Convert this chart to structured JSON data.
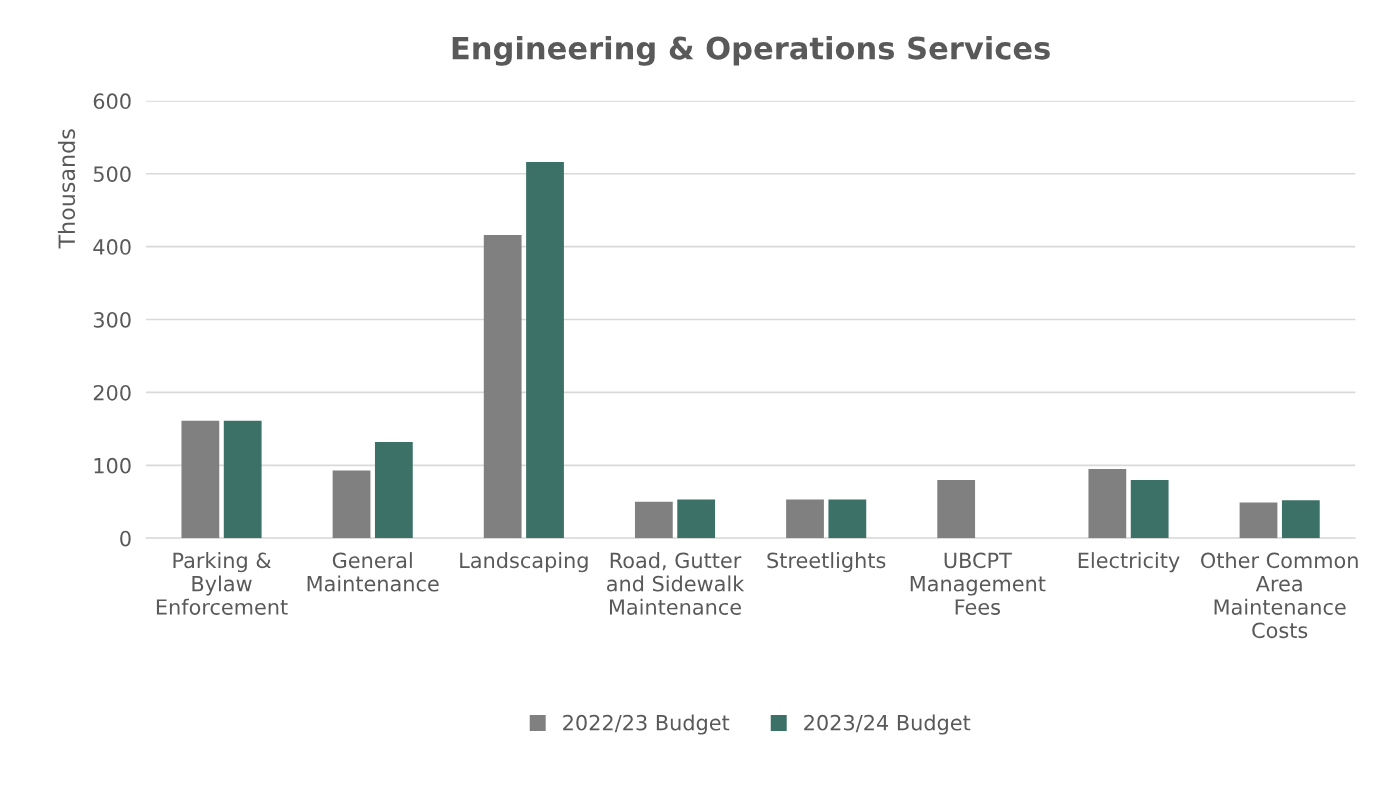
{
  "chart_data": {
    "type": "bar",
    "title": "Engineering & Operations Services",
    "ylabel": "Thousands",
    "categories": [
      "Parking & Bylaw Enforcement",
      "General Maintenance",
      "Landscaping",
      "Road, Gutter and Sidewalk Maintenance",
      "Streetlights",
      "UBCPT Management Fees",
      "Electricity",
      "Other Common Area Maintenance Costs"
    ],
    "series": [
      {
        "name": "2022/23 Budget",
        "color": "#808080",
        "values": [
          161,
          93,
          416,
          50,
          53,
          80,
          95,
          49
        ]
      },
      {
        "name": "2023/24 Budget",
        "color": "#3b7167",
        "values": [
          161,
          132,
          516,
          53,
          53,
          null,
          80,
          52
        ]
      }
    ],
    "ylim": [
      0,
      600
    ],
    "yticks": [
      0,
      100,
      200,
      300,
      400,
      500,
      600
    ],
    "grid": "y",
    "legend": "bottom"
  }
}
